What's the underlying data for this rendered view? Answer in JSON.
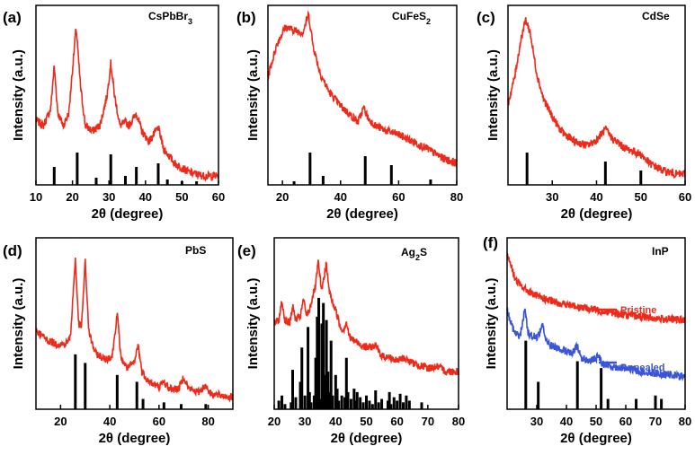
{
  "colors": {
    "curve": "#ee2a1b",
    "annealed": "#3a55d8",
    "ref": "#000000"
  },
  "chart_data": [
    {
      "type": "line",
      "panel": "(a)",
      "title": "CsPbBr3",
      "xlabel": "2θ (degree)",
      "ylabel": "Intensity (a.u.)",
      "xlim": [
        10,
        60
      ],
      "xticks": [
        10,
        20,
        30,
        40,
        50,
        60
      ],
      "series": [
        {
          "name": "CsPbBr3",
          "color": "#ee2a1b",
          "points": [
            [
              10,
              0.36
            ],
            [
              12,
              0.33
            ],
            [
              14,
              0.42
            ],
            [
              15,
              0.66
            ],
            [
              16,
              0.4
            ],
            [
              17.5,
              0.33
            ],
            [
              19,
              0.4
            ],
            [
              21,
              0.88
            ],
            [
              22.2,
              0.55
            ],
            [
              23.5,
              0.33
            ],
            [
              25.5,
              0.3
            ],
            [
              27.5,
              0.33
            ],
            [
              29.5,
              0.5
            ],
            [
              30.5,
              0.68
            ],
            [
              31.5,
              0.5
            ],
            [
              33,
              0.33
            ],
            [
              34.5,
              0.35
            ],
            [
              35.5,
              0.33
            ],
            [
              37.5,
              0.4
            ],
            [
              39,
              0.3
            ],
            [
              41,
              0.24
            ],
            [
              43.5,
              0.32
            ],
            [
              45,
              0.2
            ],
            [
              48,
              0.12
            ],
            [
              52,
              0.07
            ],
            [
              56,
              0.05
            ],
            [
              60,
              0.05
            ]
          ]
        }
      ],
      "ref_lines": [
        [
          15,
          0.1
        ],
        [
          21.3,
          0.18
        ],
        [
          26.5,
          0.04
        ],
        [
          30.5,
          0.17
        ],
        [
          34.5,
          0.05
        ],
        [
          37.5,
          0.1
        ],
        [
          43.5,
          0.12
        ],
        [
          46,
          0.03
        ],
        [
          50,
          0.02
        ],
        [
          54,
          0.02
        ]
      ]
    },
    {
      "type": "line",
      "panel": "(b)",
      "title": "CuFeS2",
      "xlabel": "2θ (degree)",
      "ylabel": "Intensity (a.u.)",
      "xlim": [
        15,
        80
      ],
      "xticks": [
        20,
        40,
        60,
        80
      ],
      "series": [
        {
          "name": "CuFeS2",
          "color": "#ee2a1b",
          "points": [
            [
              15,
              0.6
            ],
            [
              18,
              0.78
            ],
            [
              21,
              0.88
            ],
            [
              24,
              0.86
            ],
            [
              27,
              0.85
            ],
            [
              29,
              0.95
            ],
            [
              30.5,
              0.78
            ],
            [
              33,
              0.62
            ],
            [
              36,
              0.52
            ],
            [
              40,
              0.44
            ],
            [
              44,
              0.38
            ],
            [
              46,
              0.35
            ],
            [
              48,
              0.43
            ],
            [
              49.5,
              0.37
            ],
            [
              52,
              0.33
            ],
            [
              56,
              0.3
            ],
            [
              60,
              0.28
            ],
            [
              65,
              0.24
            ],
            [
              70,
              0.2
            ],
            [
              75,
              0.15
            ],
            [
              80,
              0.12
            ]
          ]
        }
      ],
      "ref_lines": [
        [
          24,
          0.02
        ],
        [
          29.5,
          0.18
        ],
        [
          34,
          0.05
        ],
        [
          48.5,
          0.16
        ],
        [
          57.5,
          0.11
        ],
        [
          71,
          0.03
        ]
      ]
    },
    {
      "type": "line",
      "panel": "(c)",
      "title": "CdSe",
      "xlabel": "2θ (degree)",
      "ylabel": "Intensity (a.u.)",
      "xlim": [
        20,
        60
      ],
      "xticks": [
        30,
        40,
        50,
        60
      ],
      "series": [
        {
          "name": "CdSe",
          "color": "#ee2a1b",
          "points": [
            [
              20,
              0.45
            ],
            [
              21.5,
              0.6
            ],
            [
              23,
              0.82
            ],
            [
              24,
              0.92
            ],
            [
              25,
              0.85
            ],
            [
              26.5,
              0.62
            ],
            [
              28,
              0.48
            ],
            [
              30,
              0.38
            ],
            [
              32,
              0.3
            ],
            [
              35,
              0.24
            ],
            [
              38,
              0.22
            ],
            [
              40,
              0.25
            ],
            [
              42,
              0.31
            ],
            [
              43.5,
              0.26
            ],
            [
              46,
              0.21
            ],
            [
              48,
              0.19
            ],
            [
              50,
              0.17
            ],
            [
              52,
              0.12
            ],
            [
              55,
              0.08
            ],
            [
              58,
              0.06
            ],
            [
              60,
              0.06
            ]
          ]
        }
      ],
      "ref_lines": [
        [
          24.3,
          0.18
        ],
        [
          42,
          0.13
        ],
        [
          50,
          0.08
        ]
      ]
    },
    {
      "type": "line",
      "panel": "(d)",
      "title": "PbS",
      "xlabel": "2θ (degree)",
      "ylabel": "Intensity (a.u.)",
      "xlim": [
        10,
        90
      ],
      "xticks": [
        20,
        40,
        60,
        80
      ],
      "series": [
        {
          "name": "PbS",
          "color": "#ee2a1b",
          "points": [
            [
              10,
              0.46
            ],
            [
              14,
              0.41
            ],
            [
              18,
              0.38
            ],
            [
              22,
              0.38
            ],
            [
              24,
              0.42
            ],
            [
              26,
              0.88
            ],
            [
              27.3,
              0.5
            ],
            [
              28.5,
              0.48
            ],
            [
              30,
              0.86
            ],
            [
              31.5,
              0.45
            ],
            [
              34,
              0.33
            ],
            [
              38,
              0.29
            ],
            [
              41,
              0.31
            ],
            [
              43,
              0.56
            ],
            [
              44.5,
              0.3
            ],
            [
              47,
              0.24
            ],
            [
              50,
              0.27
            ],
            [
              51.5,
              0.38
            ],
            [
              53,
              0.22
            ],
            [
              56,
              0.16
            ],
            [
              60,
              0.13
            ],
            [
              62,
              0.16
            ],
            [
              64,
              0.12
            ],
            [
              68,
              0.12
            ],
            [
              70,
              0.19
            ],
            [
              72,
              0.12
            ],
            [
              76,
              0.1
            ],
            [
              79,
              0.14
            ],
            [
              81,
              0.09
            ],
            [
              85,
              0.08
            ],
            [
              90,
              0.07
            ]
          ]
        }
      ],
      "ref_lines": [
        [
          26,
          0.32
        ],
        [
          30,
          0.27
        ],
        [
          43,
          0.2
        ],
        [
          51,
          0.16
        ],
        [
          53.5,
          0.06
        ],
        [
          62,
          0.04
        ],
        [
          69,
          0.03
        ],
        [
          79,
          0.03
        ]
      ]
    },
    {
      "type": "line",
      "panel": "(e)",
      "title": "Ag2S",
      "xlabel": "2θ (degree)",
      "ylabel": "Intensity (a.u.)",
      "xlim": [
        20,
        80
      ],
      "xticks": [
        20,
        30,
        40,
        50,
        60,
        70,
        80
      ],
      "series": [
        {
          "name": "Ag2S",
          "color": "#ee2a1b",
          "points": [
            [
              20,
              0.5
            ],
            [
              21.5,
              0.52
            ],
            [
              22.5,
              0.63
            ],
            [
              23.5,
              0.52
            ],
            [
              25,
              0.5
            ],
            [
              26,
              0.6
            ],
            [
              27,
              0.52
            ],
            [
              28.5,
              0.54
            ],
            [
              29.5,
              0.64
            ],
            [
              30.5,
              0.55
            ],
            [
              31.5,
              0.58
            ],
            [
              32.5,
              0.66
            ],
            [
              33.5,
              0.72
            ],
            [
              34.3,
              0.86
            ],
            [
              35.3,
              0.7
            ],
            [
              36.1,
              0.75
            ],
            [
              36.9,
              0.86
            ],
            [
              37.8,
              0.7
            ],
            [
              39,
              0.62
            ],
            [
              40,
              0.58
            ],
            [
              41.5,
              0.48
            ],
            [
              42.5,
              0.46
            ],
            [
              43.5,
              0.51
            ],
            [
              44.5,
              0.42
            ],
            [
              46,
              0.4
            ],
            [
              48,
              0.38
            ],
            [
              50,
              0.36
            ],
            [
              53,
              0.37
            ],
            [
              55,
              0.31
            ],
            [
              58,
              0.3
            ],
            [
              60,
              0.28
            ],
            [
              62,
              0.3
            ],
            [
              65,
              0.27
            ],
            [
              70,
              0.24
            ],
            [
              73,
              0.25
            ],
            [
              76,
              0.22
            ],
            [
              80,
              0.22
            ]
          ]
        }
      ],
      "ref_lines": [
        [
          21.5,
          0.05
        ],
        [
          22.5,
          0.08
        ],
        [
          23.5,
          0.03
        ],
        [
          25.5,
          0.04
        ],
        [
          26,
          0.23
        ],
        [
          27,
          0.07
        ],
        [
          28.5,
          0.16
        ],
        [
          29,
          0.36
        ],
        [
          30,
          0.08
        ],
        [
          31,
          0.48
        ],
        [
          31.5,
          0.1
        ],
        [
          32,
          0.04
        ],
        [
          33,
          0.08
        ],
        [
          33.5,
          0.3
        ],
        [
          34,
          0.54
        ],
        [
          34.5,
          0.65
        ],
        [
          35,
          0.06
        ],
        [
          35.5,
          0.5
        ],
        [
          36,
          0.62
        ],
        [
          36.5,
          0.2
        ],
        [
          37,
          0.52
        ],
        [
          37.5,
          0.22
        ],
        [
          38,
          0.1
        ],
        [
          38.5,
          0.4
        ],
        [
          39,
          0.08
        ],
        [
          40,
          0.2
        ],
        [
          40.5,
          0.12
        ],
        [
          41,
          0.05
        ],
        [
          42,
          0.08
        ],
        [
          43,
          0.07
        ],
        [
          43.5,
          0.3
        ],
        [
          44,
          0.1
        ],
        [
          45,
          0.06
        ],
        [
          46,
          0.12
        ],
        [
          46.5,
          0.05
        ],
        [
          47,
          0.1
        ],
        [
          48,
          0.07
        ],
        [
          49,
          0.04
        ],
        [
          50,
          0.08
        ],
        [
          51,
          0.05
        ],
        [
          52,
          0.03
        ],
        [
          53,
          0.11
        ],
        [
          54,
          0.04
        ],
        [
          55,
          0.06
        ],
        [
          57,
          0.05
        ],
        [
          57.5,
          0.1
        ],
        [
          58,
          0.03
        ],
        [
          59,
          0.07
        ],
        [
          60,
          0.05
        ],
        [
          61,
          0.09
        ],
        [
          62,
          0.04
        ],
        [
          63,
          0.08
        ],
        [
          64,
          0.05
        ],
        [
          68,
          0.04
        ]
      ]
    },
    {
      "type": "line",
      "panel": "(f)",
      "title": "InP",
      "xlabel": "2θ (degree)",
      "ylabel": "Intensity (a.u.)",
      "xlim": [
        20,
        80
      ],
      "xticks": [
        30,
        40,
        50,
        60,
        70,
        80
      ],
      "legend": [
        "Pristine",
        "Annealed"
      ],
      "series": [
        {
          "name": "Pristine",
          "color": "#ee2a1b",
          "points": [
            [
              20,
              0.9
            ],
            [
              21,
              0.86
            ],
            [
              22,
              0.8
            ],
            [
              23,
              0.75
            ],
            [
              24,
              0.73
            ],
            [
              26,
              0.7
            ],
            [
              28,
              0.68
            ],
            [
              30,
              0.66
            ],
            [
              35,
              0.63
            ],
            [
              40,
              0.61
            ],
            [
              50,
              0.58
            ],
            [
              60,
              0.55
            ],
            [
              70,
              0.53
            ],
            [
              80,
              0.52
            ]
          ]
        },
        {
          "name": "Annealed",
          "color": "#3a55d8",
          "points": [
            [
              20,
              0.58
            ],
            [
              21,
              0.52
            ],
            [
              22,
              0.47
            ],
            [
              23,
              0.44
            ],
            [
              24,
              0.43
            ],
            [
              25,
              0.47
            ],
            [
              26,
              0.6
            ],
            [
              27,
              0.45
            ],
            [
              28,
              0.43
            ],
            [
              30,
              0.42
            ],
            [
              31,
              0.45
            ],
            [
              32,
              0.5
            ],
            [
              33,
              0.4
            ],
            [
              35,
              0.37
            ],
            [
              40,
              0.34
            ],
            [
              42,
              0.32
            ],
            [
              43.5,
              0.37
            ],
            [
              45,
              0.3
            ],
            [
              48,
              0.28
            ],
            [
              51,
              0.31
            ],
            [
              52,
              0.27
            ],
            [
              55,
              0.25
            ],
            [
              60,
              0.24
            ],
            [
              65,
              0.22
            ],
            [
              70,
              0.21
            ],
            [
              75,
              0.2
            ],
            [
              80,
              0.19
            ]
          ]
        }
      ],
      "ref_lines": [
        [
          26.3,
          0.4
        ],
        [
          30.5,
          0.16
        ],
        [
          43.7,
          0.28
        ],
        [
          51.7,
          0.24
        ],
        [
          54,
          0.06
        ],
        [
          63.5,
          0.06
        ],
        [
          70,
          0.08
        ],
        [
          72,
          0.06
        ]
      ]
    }
  ]
}
